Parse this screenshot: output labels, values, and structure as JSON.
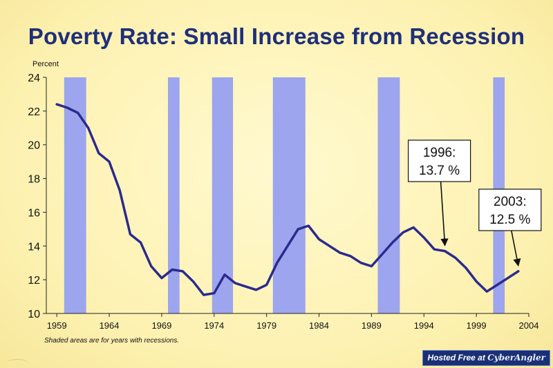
{
  "slide": {
    "title": "Poverty Rate: Small Increase from Recession"
  },
  "chart_data": {
    "type": "line",
    "title": "Poverty Rate: Small Increase from Recession",
    "ylabel": "Percent",
    "xlabel": "",
    "xlim": [
      1958,
      2004
    ],
    "ylim": [
      10,
      24
    ],
    "xticks": [
      1959,
      1964,
      1969,
      1974,
      1979,
      1984,
      1989,
      1994,
      1999,
      2004
    ],
    "yticks": [
      10,
      12,
      14,
      16,
      18,
      20,
      22,
      24
    ],
    "series": [
      {
        "name": "Poverty rate",
        "color": "#2b2a8e",
        "x": [
          1959,
          1960,
          1961,
          1962,
          1963,
          1964,
          1965,
          1966,
          1967,
          1968,
          1969,
          1970,
          1971,
          1972,
          1973,
          1974,
          1975,
          1976,
          1977,
          1978,
          1979,
          1980,
          1981,
          1982,
          1983,
          1984,
          1985,
          1986,
          1987,
          1988,
          1989,
          1990,
          1991,
          1992,
          1993,
          1994,
          1995,
          1996,
          1997,
          1998,
          1999,
          2000,
          2001,
          2002,
          2003
        ],
        "values": [
          22.4,
          22.2,
          21.9,
          21.0,
          19.5,
          19.0,
          17.3,
          14.7,
          14.2,
          12.8,
          12.1,
          12.6,
          12.5,
          11.9,
          11.1,
          11.2,
          12.3,
          11.8,
          11.6,
          11.4,
          11.7,
          13.0,
          14.0,
          15.0,
          15.2,
          14.4,
          14.0,
          13.6,
          13.4,
          13.0,
          12.8,
          13.5,
          14.2,
          14.8,
          15.1,
          14.5,
          13.8,
          13.7,
          13.3,
          12.7,
          11.9,
          11.3,
          11.7,
          12.1,
          12.5
        ]
      }
    ],
    "recession_bands": [
      {
        "start": 1959.7,
        "end": 1961.8
      },
      {
        "start": 1969.6,
        "end": 1970.7
      },
      {
        "start": 1973.8,
        "end": 1975.8
      },
      {
        "start": 1979.6,
        "end": 1982.7
      },
      {
        "start": 1989.6,
        "end": 1991.7
      },
      {
        "start": 2000.6,
        "end": 2001.7
      }
    ],
    "band_color": "#9da5ee",
    "annotations": [
      {
        "label_line1": "1996:",
        "label_line2": "13.7 %",
        "x": 1996,
        "y": 13.7
      },
      {
        "label_line1": "2003:",
        "label_line2": "12.5 %",
        "x": 2003,
        "y": 12.5
      }
    ],
    "footnote": "Shaded areas are for years with recessions."
  },
  "watermark": {
    "prefix": "Hosted Free at",
    "brand": "CyberAngler"
  }
}
